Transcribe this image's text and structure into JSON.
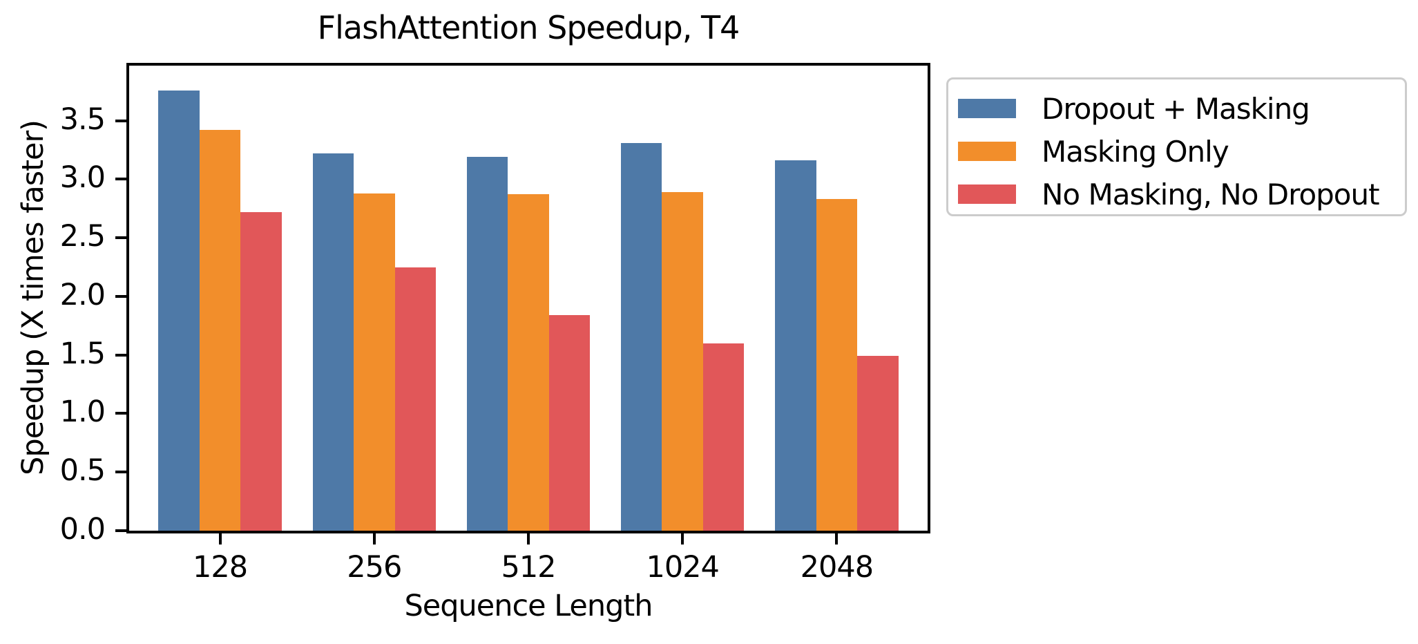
{
  "chart_data": {
    "type": "bar",
    "title": "FlashAttention Speedup, T4",
    "xlabel": "Sequence Length",
    "ylabel": "Speedup (X times faster)",
    "categories": [
      "128",
      "256",
      "512",
      "1024",
      "2048"
    ],
    "series": [
      {
        "name": "Dropout + Masking",
        "color": "#4E79A7",
        "values": [
          3.76,
          3.22,
          3.19,
          3.31,
          3.16
        ]
      },
      {
        "name": "Masking Only",
        "color": "#F28E2B",
        "values": [
          3.42,
          2.88,
          2.87,
          2.89,
          2.83
        ]
      },
      {
        "name": "No Masking, No Dropout",
        "color": "#E15759",
        "values": [
          2.72,
          2.25,
          1.84,
          1.6,
          1.49
        ]
      }
    ],
    "ylim": [
      0,
      3.97
    ],
    "yticks": [
      0.0,
      0.5,
      1.0,
      1.5,
      2.0,
      2.5,
      3.0,
      3.5
    ],
    "grid": false,
    "legend_position": "outside-top-right",
    "background_color": "#ffffff",
    "axis_color": "#000000",
    "legend_border_color": "#cccccc"
  }
}
